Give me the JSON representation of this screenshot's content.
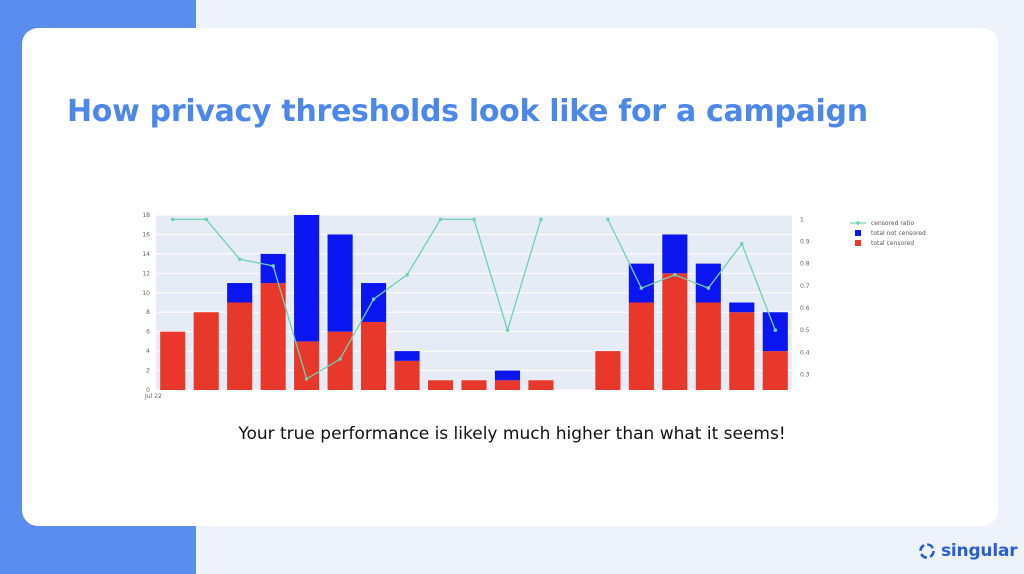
{
  "slide": {
    "title": "How privacy thresholds look like for a campaign",
    "caption": "Your true performance is likely much higher than what it seems!"
  },
  "brand": {
    "name": "singular",
    "icon": "singular-logo-icon",
    "colors": {
      "accent_band": "#5b8def",
      "title": "#4d87e8",
      "logo": "#2b5fd0"
    }
  },
  "chart_data": {
    "type": "bar",
    "stacked": true,
    "x_tick_labels": [
      "Jul 22"
    ],
    "left_axis": {
      "ticks": [
        "0",
        "2",
        "4",
        "6",
        "8",
        "10",
        "12",
        "14",
        "16",
        "18"
      ],
      "ylim": [
        0,
        18
      ]
    },
    "right_axis": {
      "ticks": [
        "0.3",
        "0.4",
        "0.5",
        "0.6",
        "0.7",
        "0.8",
        "0.9",
        "1"
      ],
      "ylim": [
        0.23,
        1.02
      ]
    },
    "grid": true,
    "legend_position": "top-right",
    "colors": {
      "censored": "#e8372b",
      "not_censored": "#0b15f0",
      "ratio": "#6fd1b0",
      "plot_bg": "#e6ecf5"
    },
    "series": [
      {
        "name": "censored ratio",
        "kind": "line",
        "axis": "right",
        "values": [
          1,
          1,
          0.82,
          0.79,
          0.28,
          0.37,
          0.64,
          0.75,
          1,
          1,
          0.5,
          1,
          null,
          1,
          0.69,
          0.75,
          0.69,
          0.89,
          0.5
        ]
      },
      {
        "name": "total not censored",
        "kind": "bar",
        "axis": "left",
        "values": [
          0,
          0,
          2,
          3,
          13,
          10,
          4,
          1,
          0,
          0,
          1,
          0,
          0,
          0,
          4,
          4,
          4,
          1,
          4
        ]
      },
      {
        "name": "total censored",
        "kind": "bar",
        "axis": "left",
        "values": [
          6,
          8,
          9,
          11,
          5,
          6,
          7,
          3,
          1,
          1,
          1,
          1,
          0,
          4,
          9,
          12,
          9,
          8,
          4
        ]
      }
    ]
  }
}
